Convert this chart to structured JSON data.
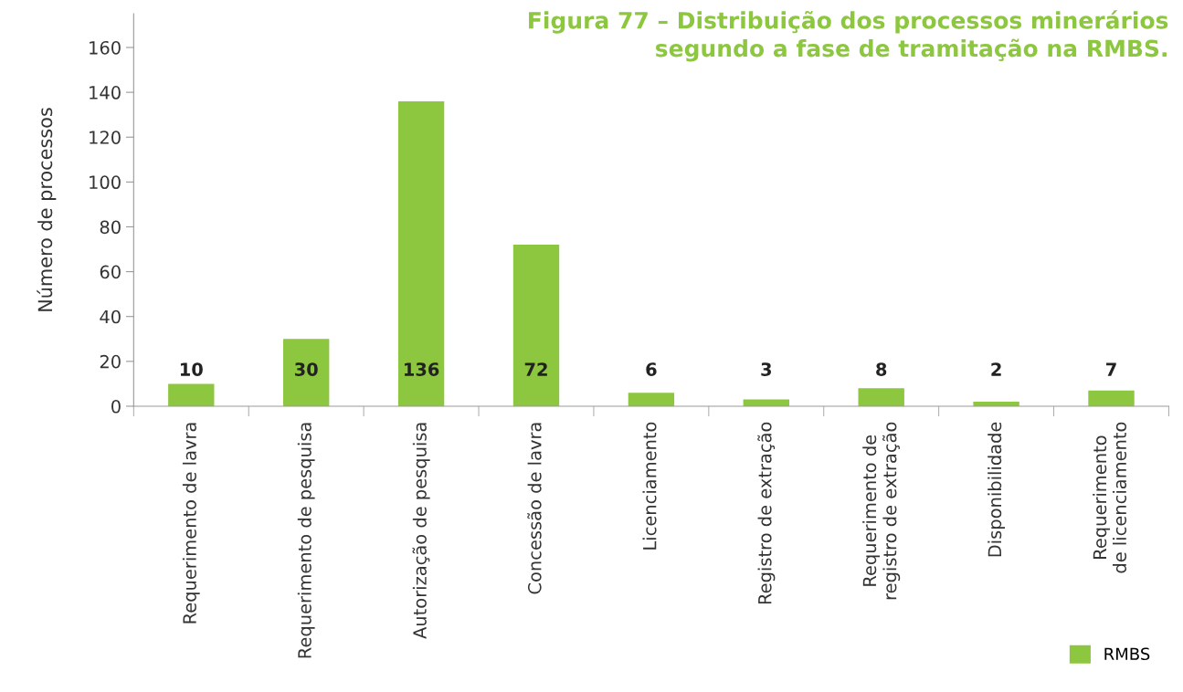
{
  "chart_data": {
    "type": "bar",
    "title": "Figura 77 – Distribuição dos processos minerários\nsegundo a fase de tramitação na RMBS.",
    "ylabel": "Número de processos",
    "categories": [
      "Requerimento de lavra",
      "Requerimento de pesquisa",
      "Autorização de pesquisa",
      "Concessão de lavra",
      "Licenciamento",
      "Registro de extração",
      "Requerimento de\nregistro de extração",
      "Disponibilidade",
      "Requerimento\nde licenciamento"
    ],
    "series": [
      {
        "name": "RMBS",
        "color": "#8dc63f",
        "values": [
          10,
          30,
          136,
          72,
          6,
          3,
          8,
          2,
          7
        ],
        "value_labels": [
          "10",
          "30",
          "136",
          "72",
          "6",
          "3",
          "8",
          "2",
          "7"
        ]
      }
    ],
    "ylim": [
      0,
      175
    ],
    "yticks": [
      0,
      20,
      40,
      60,
      80,
      100,
      120,
      140,
      160
    ],
    "grid": false,
    "legend": "bottom right"
  }
}
